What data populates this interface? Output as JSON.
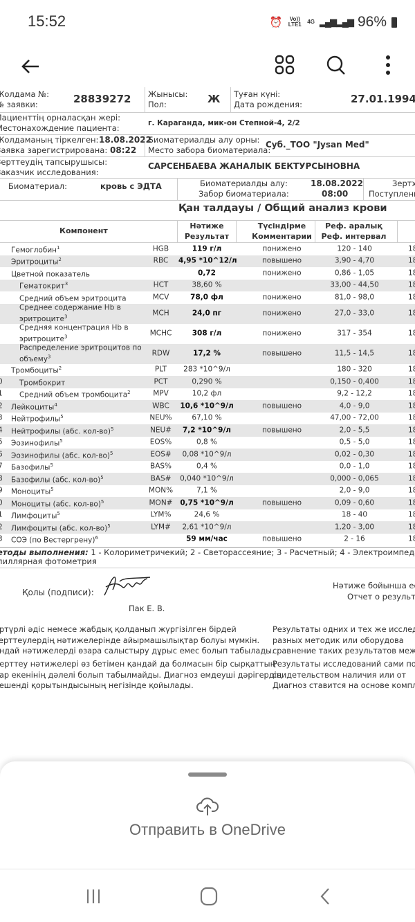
{
  "status_bar": {
    "time": "15:52",
    "volte": "Vo)) LTE1",
    "network": "4G",
    "battery": "96%"
  },
  "toolbar": {
    "back": "back-icon",
    "grid": "grid-icon",
    "search": "search-icon",
    "more": "more-icon"
  },
  "document": {
    "order_no_label_kz": "Жолдама №:",
    "order_no_label_ru": "№ заявки:",
    "order_no": "28839272",
    "sex_label_kz": "Жынысы:",
    "sex_label_ru": "Пол:",
    "sex": "Ж",
    "dob_label_kz": "Туған күні:",
    "dob_label_ru": "Дата рождения:",
    "dob": "27.01.1994",
    "location_label_kz": "Пациенттің орналасқан жері:",
    "location_label_ru": "Местонахождение пациента:",
    "location": "г. Караганда, мик-он Степной-4, 2/2",
    "registered_label_kz": "Жолдаманың тіркелген:",
    "registered_label_ru": "Заявка зарегистрирована:",
    "registered_date": "18.08.2022",
    "registered_time": "08:22",
    "collect_place_label_kz": "Биоматериалды алу орны:",
    "collect_place_label_ru": "Место забора биоматериала:",
    "collect_place": "Суб._ТОО \"Jysan Med\"",
    "customer_label_kz": "Зерттеудің тапсырушысы:",
    "customer_label_ru": "Заказчик исследования:",
    "customer": "САРСЕНБАЕВА ЖАНАЛЫК БЕКТУРСЫНОВНА",
    "biomaterial_label": "Биоматериал:",
    "biomaterial": "кровь с ЭДТА",
    "collect_label_kz": "Биоматериалды алу:",
    "collect_label_ru": "Забор биоматериала:",
    "collect_date": "18.08.2022",
    "collect_time": "08:00",
    "received_label_kz": "Зертха",
    "received_label_ru": "Поступлени",
    "title": "Қан  талдауы / Общий анализ крови",
    "columns": {
      "component": "Компонент",
      "result_kz": "Нәтиже",
      "result_ru": "Результат",
      "comment_kz": "Түсіндірме",
      "comment_ru": "Комментарии",
      "ref_kz": "Реф. аралық",
      "ref_ru": "Реф. интервал"
    },
    "rows": [
      {
        "num": "",
        "name": "Гемоглобин",
        "sup": "1",
        "code": "HGB",
        "result": "119 г/л",
        "bold": true,
        "comment": "понижено",
        "ref": "120 - 140",
        "date": "18"
      },
      {
        "num": "",
        "name": "Эритроциты",
        "sup": "2",
        "code": "RBC",
        "result": "4,95 *10^12/л",
        "bold": true,
        "comment": "повышено",
        "ref": "3,90 - 4,70",
        "date": "18"
      },
      {
        "num": "",
        "name": "Цветной показатель",
        "sup": "",
        "code": "",
        "result": "0,72",
        "bold": true,
        "comment": "понижено",
        "ref": "0,86 - 1,05",
        "date": "18"
      },
      {
        "num": "",
        "name": "Гематокрит",
        "sup": "3",
        "code": "HCT",
        "result": "38,60 %",
        "bold": false,
        "comment": "",
        "ref": "33,00 - 44,50",
        "date": "18",
        "sub": true
      },
      {
        "num": "",
        "name": "Средний объем эритроцита",
        "sup": "",
        "code": "MCV",
        "result": "78,0 фл",
        "bold": true,
        "comment": "понижено",
        "ref": "81,0 - 98,0",
        "date": "18",
        "sub": true
      },
      {
        "num": "",
        "name": "Среднее содержание Hb в",
        "name2": "эритроците",
        "sup": "3",
        "code": "MCH",
        "result": "24,0 пг",
        "bold": true,
        "comment": "понижено",
        "ref": "27,0 - 33,0",
        "date": "18",
        "sub": true
      },
      {
        "num": "",
        "name": "Средняя концентрация Hb в",
        "name2": "эритроците",
        "sup": "3",
        "code": "MCHC",
        "result": "308 г/л",
        "bold": true,
        "comment": "понижено",
        "ref": "317 - 354",
        "date": "18",
        "sub": true
      },
      {
        "num": "",
        "name": "Распределение эритроцитов по",
        "name2": "объему",
        "sup": "3",
        "code": "RDW",
        "result": "17,2 %",
        "bold": true,
        "comment": "повышено",
        "ref": "11,5 - 14,5",
        "date": "18",
        "sub": true
      },
      {
        "num": "",
        "name": "Тромбоциты",
        "sup": "2",
        "code": "PLT",
        "result": "283 *10^9/л",
        "bold": false,
        "comment": "",
        "ref": "180 - 320",
        "date": "18"
      },
      {
        "num": "0",
        "name": "Тромбокрит",
        "sup": "",
        "code": "PCT",
        "result": "0,290 %",
        "bold": false,
        "comment": "",
        "ref": "0,150 - 0,400",
        "date": "18",
        "sub": true
      },
      {
        "num": "1",
        "name": "Средний объем тромбоцита",
        "sup": "2",
        "code": "MPV",
        "result": "10,2 фл",
        "bold": false,
        "comment": "",
        "ref": "9,2 - 12,2",
        "date": "18",
        "sub": true
      },
      {
        "num": "2",
        "name": "Лейкоциты",
        "sup": "4",
        "code": "WBC",
        "result": "10,6 *10^9/л",
        "bold": true,
        "comment": "повышено",
        "ref": "4,0 - 9,0",
        "date": "18"
      },
      {
        "num": "3",
        "name": "Нейтрофилы",
        "sup": "5",
        "code": "NEU%",
        "result": "67,10 %",
        "bold": false,
        "comment": "",
        "ref": "47,00 - 72,00",
        "date": "18"
      },
      {
        "num": "4",
        "name": "Нейтрофилы (абс. кол-во)",
        "sup": "5",
        "code": "NEU#",
        "result": "7,2 *10^9/л",
        "bold": true,
        "comment": "повышено",
        "ref": "2,0 - 5,5",
        "date": "18"
      },
      {
        "num": "5",
        "name": "Эозинофилы",
        "sup": "5",
        "code": "EOS%",
        "result": "0,8 %",
        "bold": false,
        "comment": "",
        "ref": "0,5 - 5,0",
        "date": "18"
      },
      {
        "num": "6",
        "name": "Эозинофилы (абс. кол-во)",
        "sup": "5",
        "code": "EOS#",
        "result": "0,08 *10^9/л",
        "bold": false,
        "comment": "",
        "ref": "0,02 - 0,30",
        "date": "18"
      },
      {
        "num": "7",
        "name": "Базофилы",
        "sup": "5",
        "code": "BAS%",
        "result": "0,4 %",
        "bold": false,
        "comment": "",
        "ref": "0,0 - 1,0",
        "date": "18"
      },
      {
        "num": "8",
        "name": "Базофилы (абс. кол-во)",
        "sup": "5",
        "code": "BAS#",
        "result": "0,040 *10^9/л",
        "bold": false,
        "comment": "",
        "ref": "0,000 - 0,065",
        "date": "18"
      },
      {
        "num": "9",
        "name": "Моноциты",
        "sup": "5",
        "code": "MON%",
        "result": "7,1 %",
        "bold": false,
        "comment": "",
        "ref": "2,0 - 9,0",
        "date": "18"
      },
      {
        "num": "0",
        "name": "Моноциты (абс. кол-во)",
        "sup": "5",
        "code": "MON#",
        "result": "0,75 *10^9/л",
        "bold": true,
        "comment": "повышено",
        "ref": "0,09 - 0,60",
        "date": "18"
      },
      {
        "num": "1",
        "name": "Лимфоциты",
        "sup": "5",
        "code": "LYM%",
        "result": "24,6 %",
        "bold": false,
        "comment": "",
        "ref": "18 - 40",
        "date": "18"
      },
      {
        "num": "2",
        "name": "Лимфоциты (абс. кол-во)",
        "sup": "5",
        "code": "LYM#",
        "result": "2,61 *10^9/л",
        "bold": false,
        "comment": "",
        "ref": "1,20 - 3,00",
        "date": "18"
      },
      {
        "num": "3",
        "name": "СОЭ (по Вестергрену)",
        "sup": "6",
        "code": "",
        "result": "59 мм/час",
        "bold": true,
        "comment": "повышено",
        "ref": "2 - 16",
        "date": "18"
      }
    ],
    "methods_label": "етоды выполнения:",
    "methods": " 1 - Колориметричекий; 2 - Светорассеяние; 3 - Расчетный; 4 - Электроимпедансный;",
    "methods2": "пиллярная фотометрия",
    "signature_label": "Қолы (подписи):",
    "signer": "Пак Е. В.",
    "report_kz": "Нәтиже бойынша есе",
    "report_ru": "Отчет о результат",
    "disclaimer_kz_1": [
      "әртүрлі әдіс немесе жабдық қолданып жүргізілген бірдей",
      "зерттеулердің нәтижелерінде айырмашылықтар болуы мүмкін.",
      "ондай нәтижелерді өзара салыстыру дұрыс емес болып табылады."
    ],
    "disclaimer_kz_2": [
      "Зерттеу нәтижелері өз бетімен қандай да болмасын бір сырқаттың",
      "бар екенінің дәлелі болып табылмайды. Диагноз емдеуші дәрігердің",
      "кешенді қорытындысының негізінде қойылады."
    ],
    "disclaimer_ru_1": [
      "Результаты одних и тех же исследов",
      "разных методик или оборудова",
      "сравнение таких результатов между"
    ],
    "disclaimer_ru_2": [
      "Результаты исследований сами по",
      "свидетельством наличия или от",
      "Диагноз ставится на основе комплек"
    ]
  },
  "sheet": {
    "action": "Отправить в OneDrive",
    "icon": "cloud-upload-icon"
  },
  "nav": {
    "recents": "recents-icon",
    "home": "home-icon",
    "back": "nav-back-icon"
  }
}
